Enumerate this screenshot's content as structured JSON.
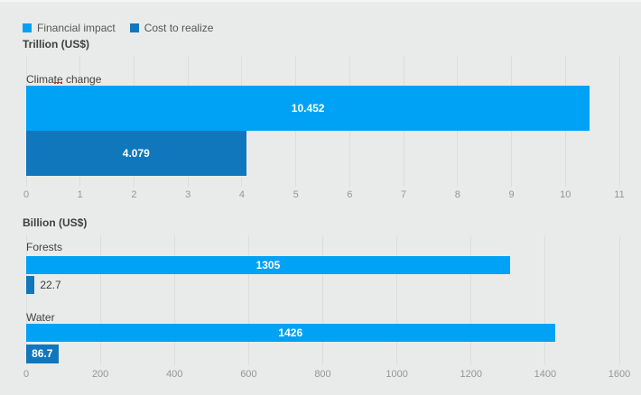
{
  "legend": {
    "position": "top-left",
    "items": [
      {
        "label": "Financial impact",
        "color": "#00a2f5",
        "icon": "square-swatch"
      },
      {
        "label": "Cost to realize",
        "color": "#1177bd",
        "icon": "square-swatch"
      }
    ]
  },
  "colors": {
    "background": "#e9ebea",
    "gridline": "#dcdedd",
    "tick_text": "#959595",
    "label_text": "#414141",
    "value_text_light": "#ffffff",
    "value_text_dark": "#3c3c3c",
    "financial_impact": "#00a2f5",
    "cost_to_realize": "#1177bd",
    "squiggle": "#e0321e"
  },
  "annotations": {
    "spellcheck_mark": "red dotted squiggle under the space in 'Climate change'"
  },
  "chart_data": [
    {
      "type": "bar",
      "orientation": "horizontal",
      "title": "Trillion (US$)",
      "xlabel": "",
      "ylabel": "",
      "grid": true,
      "categories": [
        "Climate change"
      ],
      "series": [
        {
          "name": "Financial impact",
          "color": "#00a2f5",
          "values": [
            10.452
          ],
          "labels": [
            "10.452"
          ]
        },
        {
          "name": "Cost to realize",
          "color": "#1177bd",
          "values": [
            4.079
          ],
          "labels": [
            "4.079"
          ]
        }
      ],
      "xlim": [
        0,
        11
      ],
      "ticks": [
        0,
        1,
        2,
        3,
        4,
        5,
        6,
        7,
        8,
        9,
        10,
        11
      ]
    },
    {
      "type": "bar",
      "orientation": "horizontal",
      "title": "Billion (US$)",
      "xlabel": "",
      "ylabel": "",
      "grid": true,
      "categories": [
        "Forests",
        "Water"
      ],
      "series": [
        {
          "name": "Financial impact",
          "color": "#00a2f5",
          "values": [
            1305,
            1426
          ],
          "labels": [
            "1305",
            "1426"
          ]
        },
        {
          "name": "Cost to realize",
          "color": "#1177bd",
          "values": [
            22.7,
            86.7
          ],
          "labels": [
            "22.7",
            "86.7"
          ]
        }
      ],
      "xlim": [
        0,
        1600
      ],
      "ticks": [
        0,
        200,
        400,
        600,
        800,
        1000,
        1200,
        1400,
        1600
      ]
    }
  ]
}
